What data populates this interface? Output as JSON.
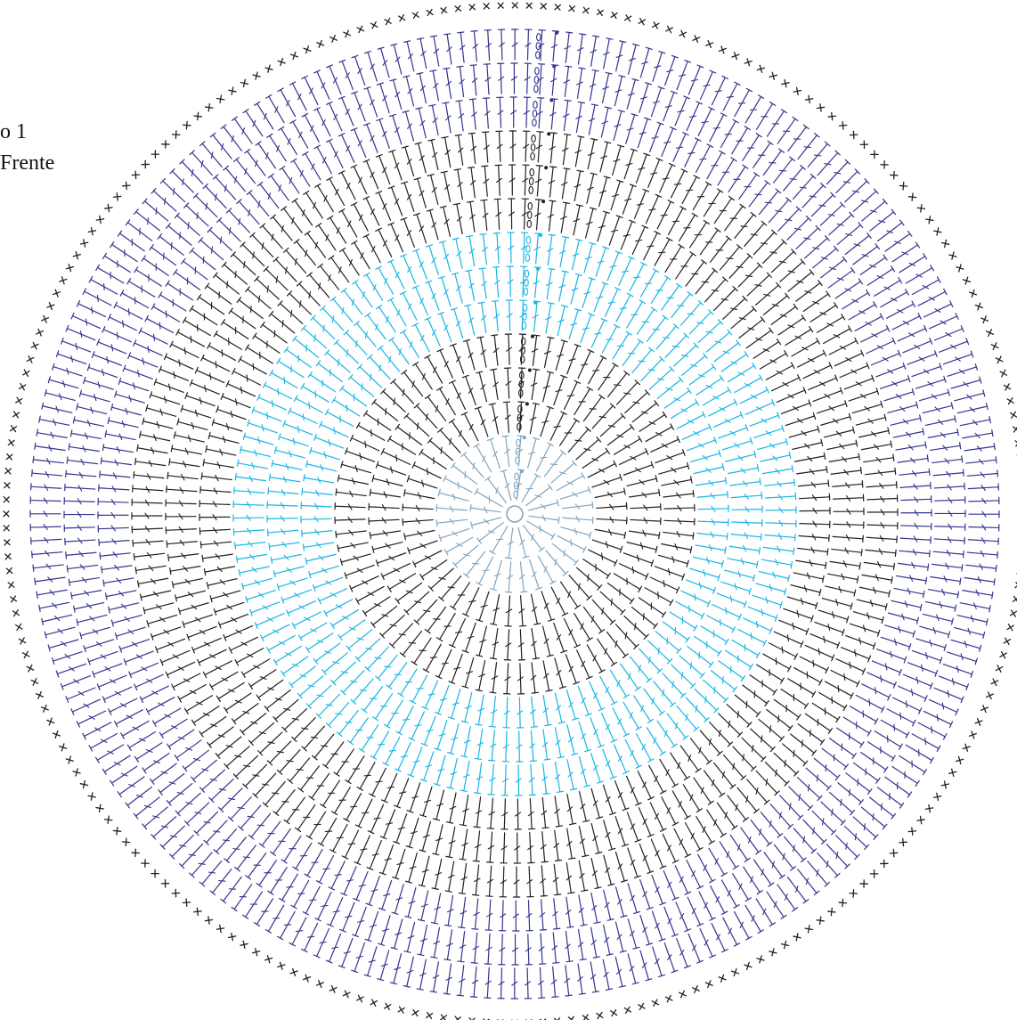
{
  "labels": {
    "line1": "o 1",
    "line2": "Frente"
  },
  "colors": {
    "background": "#ffffff",
    "black": "#231f20",
    "inner_gray_blue": "#7fa5c0",
    "cyan": "#17b5e5",
    "navy": "#33348e"
  },
  "diagram": {
    "type": "crochet-round-chart",
    "center_symbol": "magic-ring",
    "rounds": [
      {
        "n": 1,
        "stitch": "double-crochet",
        "color": "inner_gray_blue",
        "count": 16
      },
      {
        "n": 2,
        "stitch": "double-crochet",
        "color": "inner_gray_blue",
        "count": 32
      },
      {
        "n": 3,
        "stitch": "double-crochet",
        "color": "black",
        "count": 48
      },
      {
        "n": 4,
        "stitch": "double-crochet",
        "color": "black",
        "count": 64
      },
      {
        "n": 5,
        "stitch": "double-crochet",
        "color": "black",
        "count": 80
      },
      {
        "n": 6,
        "stitch": "double-crochet",
        "color": "cyan",
        "count": 96
      },
      {
        "n": 7,
        "stitch": "double-crochet",
        "color": "cyan",
        "count": 112
      },
      {
        "n": 8,
        "stitch": "double-crochet",
        "color": "cyan",
        "count": 128
      },
      {
        "n": 9,
        "stitch": "double-crochet",
        "color": "black",
        "count": 144
      },
      {
        "n": 10,
        "stitch": "double-crochet",
        "color": "black",
        "count": 160
      },
      {
        "n": 11,
        "stitch": "double-crochet",
        "color": "black",
        "count": 176
      },
      {
        "n": 12,
        "stitch": "double-crochet",
        "color": "navy",
        "count": 192
      },
      {
        "n": 13,
        "stitch": "double-crochet",
        "color": "navy",
        "count": 208
      },
      {
        "n": 14,
        "stitch": "double-crochet",
        "color": "navy",
        "count": 224
      },
      {
        "n": 15,
        "stitch": "single-crochet",
        "color": "black",
        "count": 224
      }
    ]
  }
}
